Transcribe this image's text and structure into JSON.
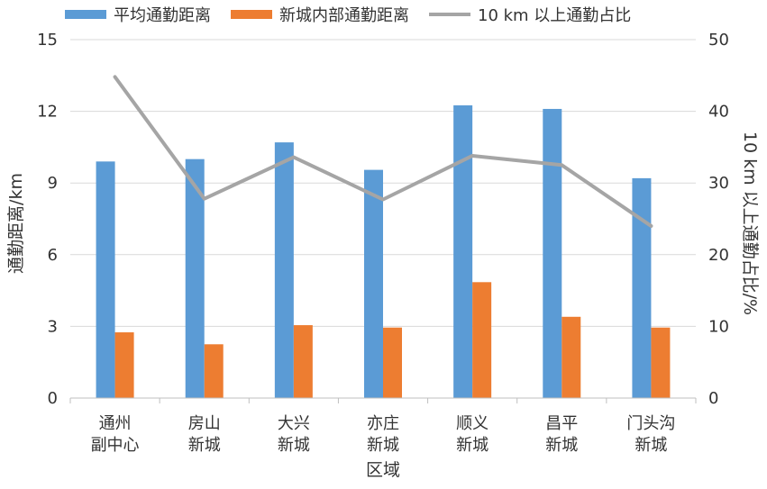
{
  "chart_data": {
    "type": "bar",
    "xlabel": "区域",
    "ylabel": "通勤距离/km",
    "y2label": "10 km 以上通勤占比/%",
    "ylim": [
      0,
      15
    ],
    "y2lim": [
      0,
      50
    ],
    "yticks": [
      0,
      3,
      6,
      9,
      12,
      15
    ],
    "y2ticks": [
      0,
      10,
      20,
      30,
      40,
      50
    ],
    "grid": true,
    "legend_position": "top",
    "categories": [
      [
        "通州",
        "副中心"
      ],
      [
        "房山",
        "新城"
      ],
      [
        "大兴",
        "新城"
      ],
      [
        "亦庄",
        "新城"
      ],
      [
        "顺义",
        "新城"
      ],
      [
        "昌平",
        "新城"
      ],
      [
        "门头沟",
        "新城"
      ]
    ],
    "series": [
      {
        "name": "平均通勤距离",
        "type": "bar",
        "axis": "left",
        "color": "#5B9BD5",
        "values": [
          9.9,
          10.0,
          10.7,
          9.55,
          12.25,
          12.1,
          9.2
        ]
      },
      {
        "name": "新城内部通勤距离",
        "type": "bar",
        "axis": "left",
        "color": "#ED7D31",
        "values": [
          2.75,
          2.25,
          3.05,
          2.95,
          4.85,
          3.4,
          2.95
        ]
      },
      {
        "name": "10 km 以上通勤占比",
        "type": "line",
        "axis": "right",
        "color": "#A5A5A5",
        "values": [
          44.8,
          27.8,
          33.6,
          27.7,
          33.8,
          32.5,
          24.0
        ]
      }
    ]
  }
}
